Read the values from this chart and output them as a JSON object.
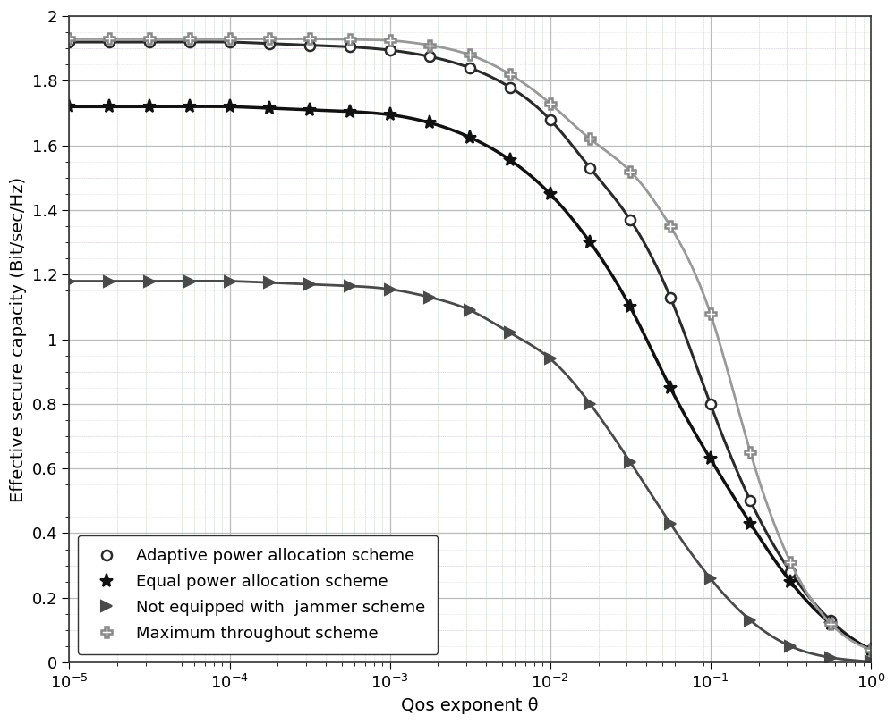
{
  "title": "",
  "xlabel": "Qos exponent θ",
  "ylabel": "Effective secure capacity (Bit/sec/Hz)",
  "ylim": [
    0,
    2.0
  ],
  "yticks": [
    0,
    0.2,
    0.4,
    0.6,
    0.8,
    1.0,
    1.2,
    1.4,
    1.6,
    1.8,
    2.0
  ],
  "series": [
    {
      "label": "Adaptive power allocation scheme",
      "color": "#2a2a2a",
      "linewidth": 2.2,
      "marker": "o",
      "markersize": 8,
      "markerfacecolor": "white",
      "markeredgecolor": "#2a2a2a",
      "markeredgewidth": 1.8,
      "x_log": [
        -5.0,
        -4.75,
        -4.5,
        -4.25,
        -4.0,
        -3.75,
        -3.5,
        -3.25,
        -3.0,
        -2.75,
        -2.5,
        -2.25,
        -2.0,
        -1.75,
        -1.5,
        -1.25,
        -1.0,
        -0.75,
        -0.5,
        -0.25,
        0.0
      ],
      "y": [
        1.92,
        1.92,
        1.92,
        1.92,
        1.92,
        1.915,
        1.91,
        1.905,
        1.895,
        1.875,
        1.84,
        1.78,
        1.68,
        1.53,
        1.37,
        1.13,
        0.8,
        0.5,
        0.28,
        0.13,
        0.04
      ]
    },
    {
      "label": "Equal power allocation scheme",
      "color": "#111111",
      "linewidth": 2.5,
      "marker": "*",
      "markersize": 11,
      "markerfacecolor": "#111111",
      "markeredgecolor": "#111111",
      "markeredgewidth": 1.5,
      "x_log": [
        -5.0,
        -4.75,
        -4.5,
        -4.25,
        -4.0,
        -3.75,
        -3.5,
        -3.25,
        -3.0,
        -2.75,
        -2.5,
        -2.25,
        -2.0,
        -1.75,
        -1.5,
        -1.25,
        -1.0,
        -0.75,
        -0.5,
        -0.25,
        0.0
      ],
      "y": [
        1.72,
        1.72,
        1.72,
        1.72,
        1.72,
        1.715,
        1.71,
        1.705,
        1.695,
        1.67,
        1.625,
        1.555,
        1.45,
        1.3,
        1.1,
        0.85,
        0.63,
        0.43,
        0.25,
        0.12,
        0.04
      ]
    },
    {
      "label": "Not equipped with  jammer scheme",
      "color": "#4a4a4a",
      "linewidth": 2.0,
      "marker": ">",
      "markersize": 9,
      "markerfacecolor": "#4a4a4a",
      "markeredgecolor": "#4a4a4a",
      "markeredgewidth": 1.5,
      "x_log": [
        -5.0,
        -4.75,
        -4.5,
        -4.25,
        -4.0,
        -3.75,
        -3.5,
        -3.25,
        -3.0,
        -2.75,
        -2.5,
        -2.25,
        -2.0,
        -1.75,
        -1.5,
        -1.25,
        -1.0,
        -0.75,
        -0.5,
        -0.25,
        0.0
      ],
      "y": [
        1.18,
        1.18,
        1.18,
        1.18,
        1.18,
        1.175,
        1.17,
        1.165,
        1.155,
        1.13,
        1.09,
        1.02,
        0.94,
        0.8,
        0.62,
        0.43,
        0.26,
        0.13,
        0.05,
        0.015,
        0.002
      ]
    },
    {
      "label": "Maximum throughout scheme",
      "color": "#999999",
      "linewidth": 2.0,
      "marker": "P",
      "markersize": 9,
      "markerfacecolor": "white",
      "markeredgecolor": "#888888",
      "markeredgewidth": 1.8,
      "x_log": [
        -5.0,
        -4.75,
        -4.5,
        -4.25,
        -4.0,
        -3.75,
        -3.5,
        -3.25,
        -3.0,
        -2.75,
        -2.5,
        -2.25,
        -2.0,
        -1.75,
        -1.5,
        -1.25,
        -1.0,
        -0.75,
        -0.5,
        -0.25,
        0.0
      ],
      "y": [
        1.93,
        1.93,
        1.93,
        1.93,
        1.93,
        1.93,
        1.93,
        1.928,
        1.925,
        1.91,
        1.88,
        1.82,
        1.73,
        1.62,
        1.52,
        1.35,
        1.08,
        0.65,
        0.31,
        0.12,
        0.04
      ]
    }
  ],
  "legend_loc": "lower left",
  "legend_fontsize": 13,
  "axis_fontsize": 14,
  "tick_fontsize": 13,
  "grid_major_color": "#bbbbbb",
  "grid_minor_color_green": "#c8e8c8",
  "grid_minor_color_pink": "#e8c8e8",
  "bg_color": "#ffffff"
}
